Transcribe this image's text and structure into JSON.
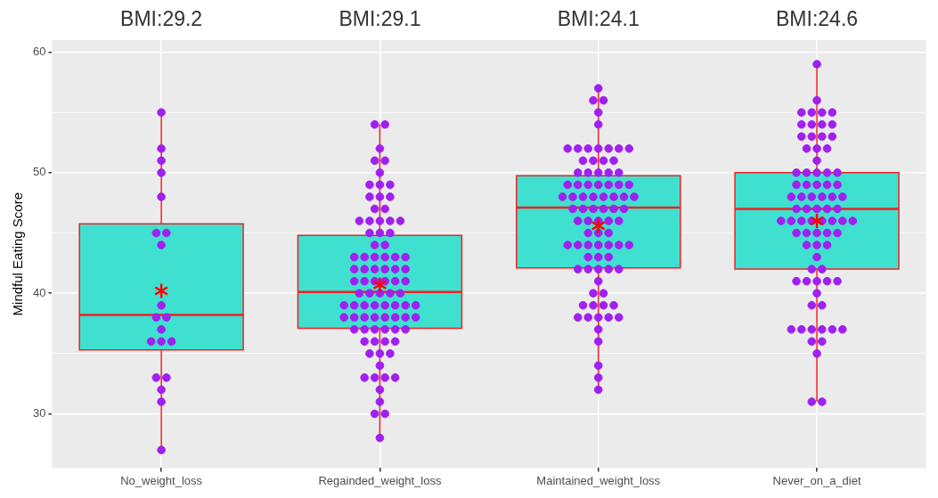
{
  "chart_data": {
    "type": "box",
    "ylabel": "Mindful Eating Score",
    "categories": [
      "No_weight_loss",
      "Regainded_weight_loss",
      "Maintained_weight_loss",
      "Never_on_a_diet"
    ],
    "ylim": [
      25.5,
      61
    ],
    "yticks": [
      30,
      {
        "value": 35,
        "label": null
      },
      40,
      {
        "value": 45,
        "label": null
      },
      50,
      {
        "value": 55,
        "label": null
      },
      60
    ],
    "grid": true,
    "annotations": [
      "BMI:29.2",
      "BMI:29.1",
      "BMI:24.1",
      "BMI:24.6"
    ],
    "series": [
      {
        "color": "#40e0d0",
        "boxes": [
          {
            "low": 27,
            "q1": 35.3,
            "median": 38.2,
            "q3": 45.75,
            "high": 55,
            "mean": 40.2
          },
          {
            "low": 28,
            "q1": 37.1,
            "median": 40.1,
            "q3": 44.8,
            "high": 54,
            "mean": 40.7
          },
          {
            "low": 32,
            "q1": 42.1,
            "median": 47.1,
            "q3": 49.75,
            "high": 57,
            "mean": 45.6
          },
          {
            "low": 31,
            "q1": 42,
            "median": 47,
            "q3": 50,
            "high": 59,
            "mean": 46
          }
        ]
      },
      {
        "type": "scatter",
        "color": "#a020f0",
        "x": [
          "No_weight_loss",
          "No_weight_loss",
          "No_weight_loss",
          "No_weight_loss",
          "No_weight_loss",
          "No_weight_loss",
          "No_weight_loss",
          "No_weight_loss",
          "No_weight_loss",
          "No_weight_loss",
          "No_weight_loss",
          "No_weight_loss",
          "No_weight_loss",
          "No_weight_loss",
          "No_weight_loss",
          "No_weight_loss",
          "No_weight_loss",
          "No_weight_loss",
          "No_weight_loss",
          "No_weight_loss"
        ],
        "values": [
          55,
          52,
          51,
          50,
          48,
          45,
          45,
          44,
          39,
          38,
          38,
          37,
          36,
          36,
          36,
          33,
          33,
          32,
          31,
          27
        ]
      },
      {
        "type": "scatter",
        "color": "#a020f0",
        "x": [
          "Regainded_weight_loss",
          "Regainded_weight_loss",
          "Regainded_weight_loss",
          "Regainded_weight_loss",
          "Regainded_weight_loss",
          "Regainded_weight_loss",
          "Regainded_weight_loss",
          "Regainded_weight_loss",
          "Regainded_weight_loss",
          "Regainded_weight_loss",
          "Regainded_weight_loss",
          "Regainded_weight_loss",
          "Regainded_weight_loss",
          "Regainded_weight_loss",
          "Regainded_weight_loss",
          "Regainded_weight_loss",
          "Regainded_weight_loss",
          "Regainded_weight_loss",
          "Regainded_weight_loss",
          "Regainded_weight_loss",
          "Regainded_weight_loss",
          "Regainded_weight_loss",
          "Regainded_weight_loss",
          "Regainded_weight_loss",
          "Regainded_weight_loss",
          "Regainded_weight_loss",
          "Regainded_weight_loss",
          "Regainded_weight_loss",
          "Regainded_weight_loss",
          "Regainded_weight_loss",
          "Regainded_weight_loss",
          "Regainded_weight_loss",
          "Regainded_weight_loss",
          "Regainded_weight_loss",
          "Regainded_weight_loss",
          "Regainded_weight_loss",
          "Regainded_weight_loss",
          "Regainded_weight_loss",
          "Regainded_weight_loss",
          "Regainded_weight_loss",
          "Regainded_weight_loss",
          "Regainded_weight_loss",
          "Regainded_weight_loss",
          "Regainded_weight_loss",
          "Regainded_weight_loss",
          "Regainded_weight_loss",
          "Regainded_weight_loss",
          "Regainded_weight_loss",
          "Regainded_weight_loss",
          "Regainded_weight_loss",
          "Regainded_weight_loss",
          "Regainded_weight_loss",
          "Regainded_weight_loss",
          "Regainded_weight_loss",
          "Regainded_weight_loss",
          "Regainded_weight_loss",
          "Regainded_weight_loss",
          "Regainded_weight_loss",
          "Regainded_weight_loss",
          "Regainded_weight_loss",
          "Regainded_weight_loss",
          "Regainded_weight_loss",
          "Regainded_weight_loss",
          "Regainded_weight_loss",
          "Regainded_weight_loss",
          "Regainded_weight_loss",
          "Regainded_weight_loss",
          "Regainded_weight_loss",
          "Regainded_weight_loss",
          "Regainded_weight_loss",
          "Regainded_weight_loss",
          "Regainded_weight_loss",
          "Regainded_weight_loss",
          "Regainded_weight_loss",
          "Regainded_weight_loss",
          "Regainded_weight_loss",
          "Regainded_weight_loss",
          "Regainded_weight_loss",
          "Regainded_weight_loss",
          "Regainded_weight_loss",
          "Regainded_weight_loss",
          "Regainded_weight_loss",
          "Regainded_weight_loss",
          "Regainded_weight_loss",
          "Regainded_weight_loss",
          "Regainded_weight_loss"
        ],
        "values": [
          54,
          54,
          52,
          51,
          51,
          50,
          49,
          49,
          49,
          48,
          48,
          48,
          47,
          47,
          46,
          46,
          46,
          46,
          46,
          45,
          45,
          45,
          44,
          44,
          43,
          43,
          43,
          43,
          43,
          43,
          42,
          42,
          42,
          42,
          42,
          42,
          41,
          41,
          41,
          41,
          41,
          41,
          40,
          40,
          40,
          40,
          40,
          39,
          39,
          39,
          39,
          39,
          39,
          39,
          39,
          38,
          38,
          38,
          38,
          38,
          38,
          38,
          38,
          37,
          37,
          37,
          37,
          37,
          37,
          36,
          36,
          36,
          36,
          35,
          35,
          35,
          34,
          33,
          33,
          33,
          33,
          32,
          31,
          30,
          30,
          28
        ]
      },
      {
        "type": "scatter",
        "color": "#a020f0",
        "x": [
          "Maintained_weight_loss",
          "Maintained_weight_loss",
          "Maintained_weight_loss",
          "Maintained_weight_loss",
          "Maintained_weight_loss",
          "Maintained_weight_loss",
          "Maintained_weight_loss",
          "Maintained_weight_loss",
          "Maintained_weight_loss",
          "Maintained_weight_loss",
          "Maintained_weight_loss",
          "Maintained_weight_loss",
          "Maintained_weight_loss",
          "Maintained_weight_loss",
          "Maintained_weight_loss",
          "Maintained_weight_loss",
          "Maintained_weight_loss",
          "Maintained_weight_loss",
          "Maintained_weight_loss",
          "Maintained_weight_loss",
          "Maintained_weight_loss",
          "Maintained_weight_loss",
          "Maintained_weight_loss",
          "Maintained_weight_loss",
          "Maintained_weight_loss",
          "Maintained_weight_loss",
          "Maintained_weight_loss",
          "Maintained_weight_loss",
          "Maintained_weight_loss",
          "Maintained_weight_loss",
          "Maintained_weight_loss",
          "Maintained_weight_loss",
          "Maintained_weight_loss",
          "Maintained_weight_loss",
          "Maintained_weight_loss",
          "Maintained_weight_loss",
          "Maintained_weight_loss",
          "Maintained_weight_loss",
          "Maintained_weight_loss",
          "Maintained_weight_loss",
          "Maintained_weight_loss",
          "Maintained_weight_loss",
          "Maintained_weight_loss",
          "Maintained_weight_loss",
          "Maintained_weight_loss",
          "Maintained_weight_loss",
          "Maintained_weight_loss",
          "Maintained_weight_loss",
          "Maintained_weight_loss",
          "Maintained_weight_loss",
          "Maintained_weight_loss",
          "Maintained_weight_loss",
          "Maintained_weight_loss",
          "Maintained_weight_loss",
          "Maintained_weight_loss",
          "Maintained_weight_loss",
          "Maintained_weight_loss",
          "Maintained_weight_loss",
          "Maintained_weight_loss",
          "Maintained_weight_loss",
          "Maintained_weight_loss",
          "Maintained_weight_loss",
          "Maintained_weight_loss",
          "Maintained_weight_loss",
          "Maintained_weight_loss",
          "Maintained_weight_loss",
          "Maintained_weight_loss",
          "Maintained_weight_loss",
          "Maintained_weight_loss",
          "Maintained_weight_loss",
          "Maintained_weight_loss",
          "Maintained_weight_loss",
          "Maintained_weight_loss",
          "Maintained_weight_loss",
          "Maintained_weight_loss",
          "Maintained_weight_loss",
          "Maintained_weight_loss",
          "Maintained_weight_loss",
          "Maintained_weight_loss",
          "Maintained_weight_loss",
          "Maintained_weight_loss",
          "Maintained_weight_loss"
        ],
        "values": [
          57,
          56,
          56,
          55,
          54,
          52,
          52,
          52,
          52,
          52,
          52,
          52,
          51,
          51,
          51,
          51,
          50,
          50,
          50,
          50,
          50,
          49,
          49,
          49,
          49,
          49,
          49,
          49,
          48,
          48,
          48,
          48,
          48,
          48,
          48,
          48,
          47,
          47,
          47,
          47,
          47,
          47,
          46,
          46,
          46,
          46,
          46,
          45,
          45,
          45,
          44,
          44,
          44,
          44,
          44,
          44,
          44,
          43,
          43,
          43,
          42,
          42,
          42,
          42,
          42,
          41,
          40,
          40,
          39,
          39,
          39,
          39,
          38,
          38,
          38,
          38,
          38,
          37,
          36,
          34,
          33,
          32
        ]
      },
      {
        "type": "scatter",
        "color": "#a020f0",
        "x": [
          "Never_on_a_diet",
          "Never_on_a_diet",
          "Never_on_a_diet",
          "Never_on_a_diet",
          "Never_on_a_diet",
          "Never_on_a_diet",
          "Never_on_a_diet",
          "Never_on_a_diet",
          "Never_on_a_diet",
          "Never_on_a_diet",
          "Never_on_a_diet",
          "Never_on_a_diet",
          "Never_on_a_diet",
          "Never_on_a_diet",
          "Never_on_a_diet",
          "Never_on_a_diet",
          "Never_on_a_diet",
          "Never_on_a_diet",
          "Never_on_a_diet",
          "Never_on_a_diet",
          "Never_on_a_diet",
          "Never_on_a_diet",
          "Never_on_a_diet",
          "Never_on_a_diet",
          "Never_on_a_diet",
          "Never_on_a_diet",
          "Never_on_a_diet",
          "Never_on_a_diet",
          "Never_on_a_diet",
          "Never_on_a_diet",
          "Never_on_a_diet",
          "Never_on_a_diet",
          "Never_on_a_diet",
          "Never_on_a_diet",
          "Never_on_a_diet",
          "Never_on_a_diet",
          "Never_on_a_diet",
          "Never_on_a_diet",
          "Never_on_a_diet",
          "Never_on_a_diet",
          "Never_on_a_diet",
          "Never_on_a_diet",
          "Never_on_a_diet",
          "Never_on_a_diet",
          "Never_on_a_diet",
          "Never_on_a_diet",
          "Never_on_a_diet",
          "Never_on_a_diet",
          "Never_on_a_diet",
          "Never_on_a_diet",
          "Never_on_a_diet",
          "Never_on_a_diet",
          "Never_on_a_diet",
          "Never_on_a_diet",
          "Never_on_a_diet",
          "Never_on_a_diet",
          "Never_on_a_diet",
          "Never_on_a_diet",
          "Never_on_a_diet",
          "Never_on_a_diet",
          "Never_on_a_diet",
          "Never_on_a_diet",
          "Never_on_a_diet",
          "Never_on_a_diet",
          "Never_on_a_diet",
          "Never_on_a_diet",
          "Never_on_a_diet",
          "Never_on_a_diet",
          "Never_on_a_diet",
          "Never_on_a_diet",
          "Never_on_a_diet",
          "Never_on_a_diet",
          "Never_on_a_diet",
          "Never_on_a_diet",
          "Never_on_a_diet",
          "Never_on_a_diet",
          "Never_on_a_diet"
        ],
        "values": [
          59,
          56,
          55,
          55,
          55,
          55,
          54,
          54,
          54,
          54,
          53,
          53,
          53,
          53,
          52,
          52,
          52,
          51,
          50,
          50,
          50,
          50,
          50,
          49,
          49,
          49,
          49,
          49,
          48,
          48,
          48,
          48,
          48,
          48,
          47,
          47,
          47,
          47,
          47,
          46,
          46,
          46,
          46,
          46,
          46,
          46,
          46,
          45,
          45,
          45,
          45,
          45,
          44,
          44,
          44,
          43,
          42,
          42,
          41,
          41,
          41,
          41,
          41,
          40,
          39,
          39,
          37,
          37,
          37,
          37,
          37,
          37,
          36,
          36,
          35,
          31,
          31
        ]
      }
    ]
  }
}
